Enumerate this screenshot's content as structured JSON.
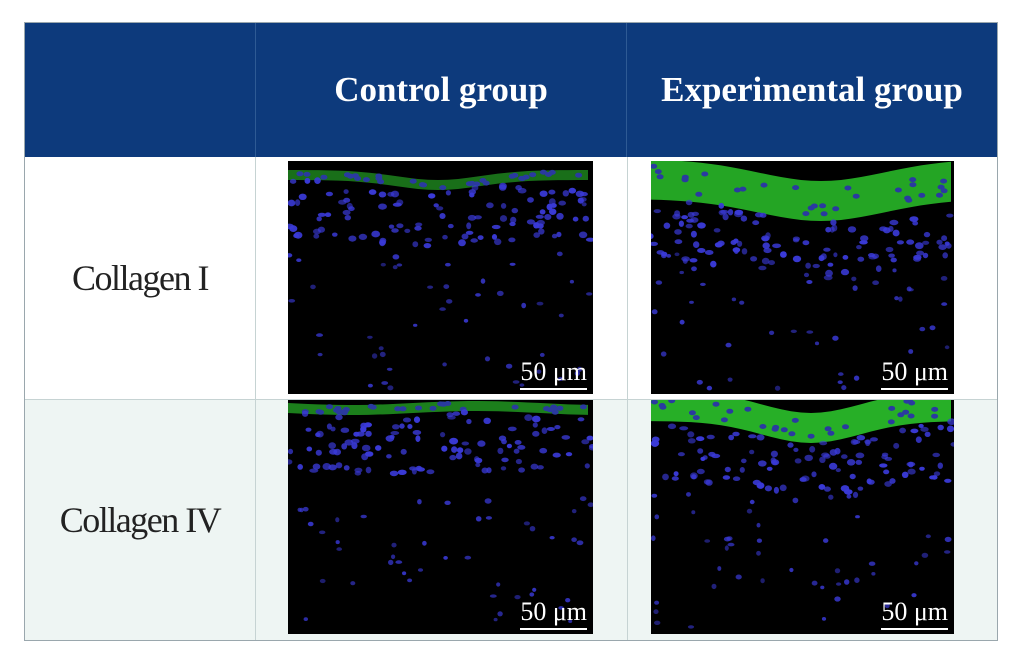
{
  "columns": [
    "",
    "Control group",
    "Experimental group"
  ],
  "rows": [
    {
      "label": "Collagen I",
      "scale_bar": "50 μm",
      "control_scale": "50 μm",
      "experimental_scale": "50 μm"
    },
    {
      "label": "Collagen IV",
      "scale_bar": "50 μm",
      "control_scale": "50 μm",
      "experimental_scale": "50 μm"
    }
  ],
  "colors": {
    "header_bg": "#0d3a7c",
    "header_text": "#ffffff",
    "nuclei": "#3a3ad8",
    "collagen_stain": "#2fd42f",
    "row2_bg": "#eef5f3"
  },
  "panels": [
    {
      "row": 0,
      "group": "control",
      "stain_intensity": 0.35
    },
    {
      "row": 0,
      "group": "experimental",
      "stain_intensity": 0.85
    },
    {
      "row": 1,
      "group": "control",
      "stain_intensity": 0.5
    },
    {
      "row": 1,
      "group": "experimental",
      "stain_intensity": 0.95
    }
  ]
}
